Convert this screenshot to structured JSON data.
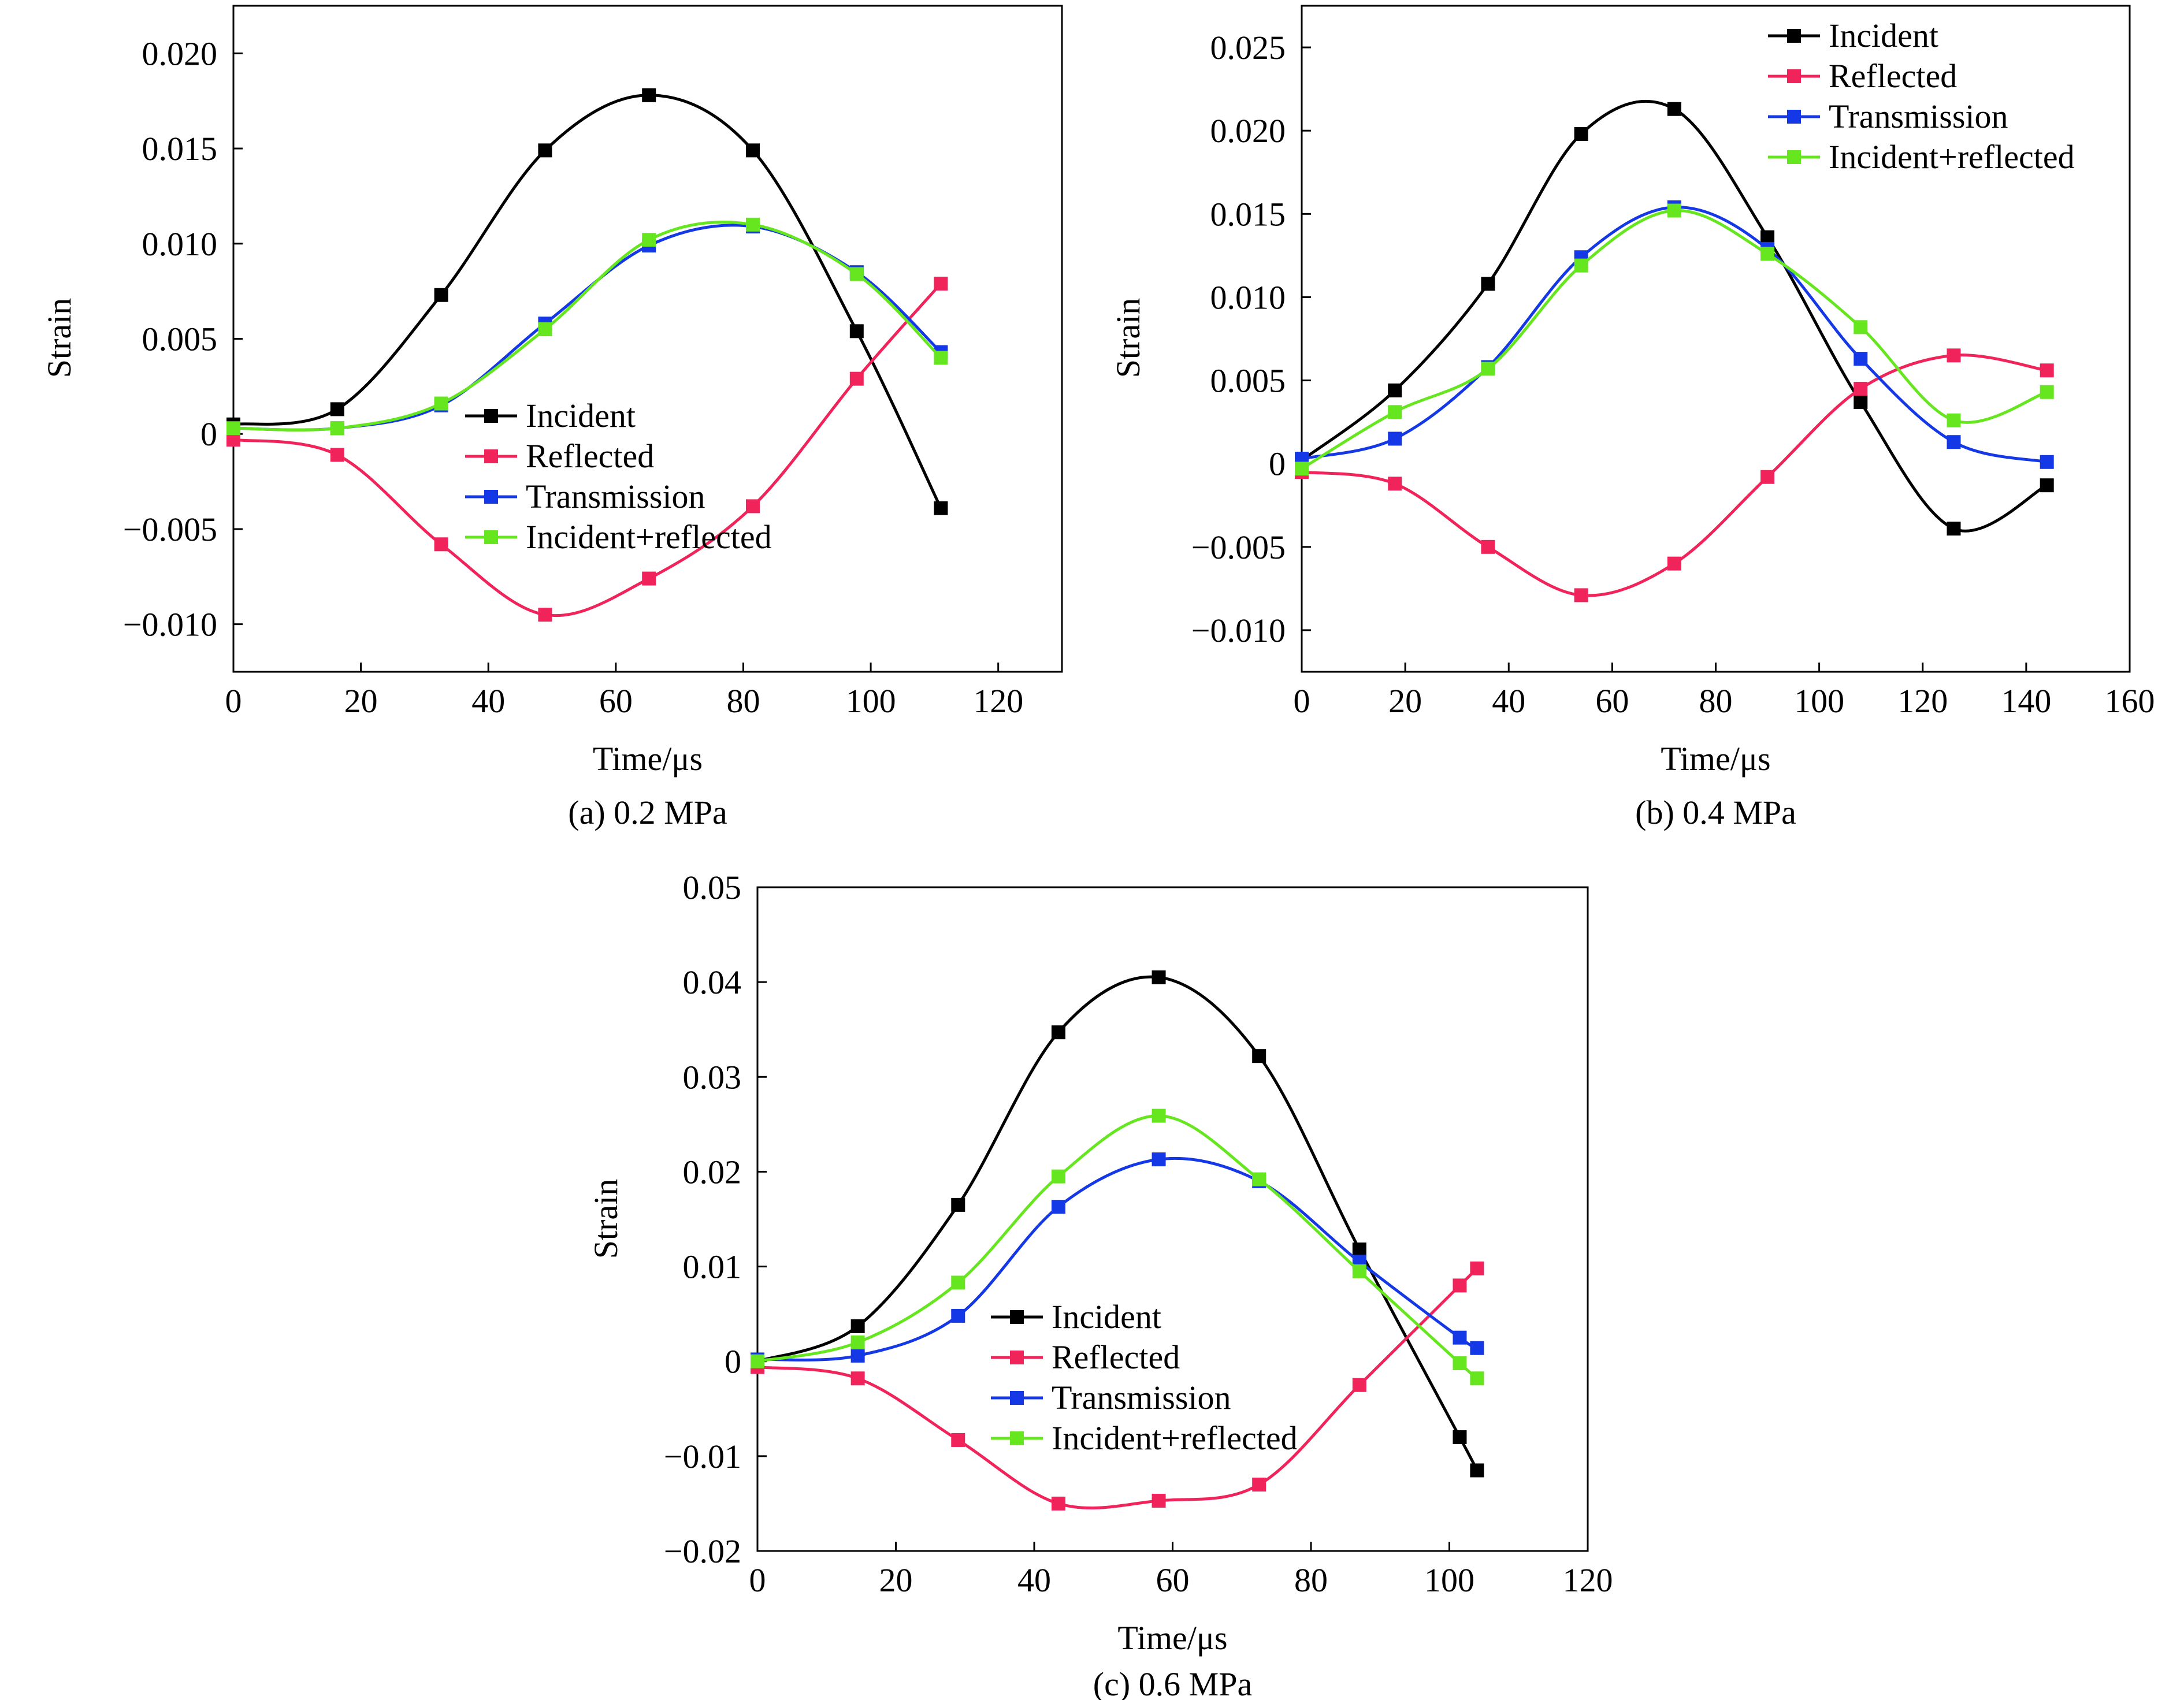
{
  "colors": {
    "Incident": "#000000",
    "Reflected": "#f0245a",
    "Transmission": "#1538e6",
    "Incident+reflected": "#66e61e"
  },
  "chart_data": [
    {
      "id": "a",
      "type": "line",
      "caption": "(a) 0.2 MPa",
      "xlabel": "Time/μs",
      "ylabel": "Strain",
      "xlim": [
        0,
        130
      ],
      "ylim": [
        -0.0125,
        0.0225
      ],
      "xticks": [
        0,
        20,
        40,
        60,
        80,
        100,
        120
      ],
      "xtick_labels": [
        "0",
        "20",
        "40",
        "60",
        "80",
        "100",
        "120"
      ],
      "yticks": [
        -0.01,
        -0.005,
        0,
        0.005,
        0.01,
        0.015,
        0.02
      ],
      "ytick_labels": [
        "−0.010",
        "−0.005",
        "0",
        "0.005",
        "0.010",
        "0.015",
        "0.020"
      ],
      "legend_position": "center",
      "legend": [
        "Incident",
        "Reflected",
        "Transmission",
        "Incident+reflected"
      ],
      "series": [
        {
          "name": "Incident",
          "x": [
            0,
            16.3,
            32.6,
            48.9,
            65.2,
            81.5,
            97.8,
            111.0
          ],
          "y": [
            0.0005,
            0.0013,
            0.0073,
            0.0149,
            0.0178,
            0.0149,
            0.0054,
            -0.0039
          ]
        },
        {
          "name": "Reflected",
          "x": [
            0,
            16.3,
            32.6,
            48.9,
            65.2,
            81.5,
            97.8,
            111.0
          ],
          "y": [
            -0.0003,
            -0.0011,
            -0.0058,
            -0.0095,
            -0.0076,
            -0.0038,
            0.0029,
            0.0079
          ]
        },
        {
          "name": "Transmission",
          "x": [
            0,
            16.3,
            32.6,
            48.9,
            65.2,
            81.5,
            97.8,
            111.0
          ],
          "y": [
            0.0003,
            0.0003,
            0.0015,
            0.0058,
            0.0099,
            0.0109,
            0.0085,
            0.0043
          ]
        },
        {
          "name": "Incident+reflected",
          "x": [
            0,
            16.3,
            32.6,
            48.9,
            65.2,
            81.5,
            97.8,
            111.0
          ],
          "y": [
            0.0003,
            0.0003,
            0.0016,
            0.0055,
            0.0102,
            0.011,
            0.0084,
            0.004
          ]
        }
      ]
    },
    {
      "id": "b",
      "type": "line",
      "caption": "(b) 0.4 MPa",
      "xlabel": "Time/μs",
      "ylabel": "Strain",
      "xlim": [
        0,
        160
      ],
      "ylim": [
        -0.0125,
        0.0275
      ],
      "xticks": [
        0,
        20,
        40,
        60,
        80,
        100,
        120,
        140,
        160
      ],
      "xtick_labels": [
        "0",
        "20",
        "40",
        "60",
        "80",
        "100",
        "120",
        "140",
        "160"
      ],
      "yticks": [
        -0.01,
        -0.005,
        0,
        0.005,
        0.01,
        0.015,
        0.02,
        0.025
      ],
      "ytick_labels": [
        "−0.010",
        "−0.005",
        "0",
        "0.005",
        "0.010",
        "0.015",
        "0.020",
        "0.025"
      ],
      "legend_position": "top-right",
      "legend": [
        "Incident",
        "Reflected",
        "Transmission",
        "Incident+reflected"
      ],
      "series": [
        {
          "name": "Incident",
          "x": [
            0,
            18,
            36,
            54,
            72,
            90,
            108,
            126,
            144
          ],
          "y": [
            0.0002,
            0.0044,
            0.0108,
            0.0198,
            0.0213,
            0.0136,
            0.0037,
            -0.0039,
            -0.0013
          ]
        },
        {
          "name": "Reflected",
          "x": [
            0,
            18,
            36,
            54,
            72,
            90,
            108,
            126,
            144
          ],
          "y": [
            -0.0005,
            -0.0012,
            -0.005,
            -0.0079,
            -0.006,
            -0.0008,
            0.0045,
            0.0065,
            0.0056
          ]
        },
        {
          "name": "Transmission",
          "x": [
            0,
            18,
            36,
            54,
            72,
            90,
            108,
            126,
            144
          ],
          "y": [
            0.0003,
            0.0015,
            0.0058,
            0.0124,
            0.0154,
            0.0129,
            0.0063,
            0.0013,
            0.0001
          ]
        },
        {
          "name": "Incident+reflected",
          "x": [
            0,
            18,
            36,
            54,
            72,
            90,
            108,
            126,
            144
          ],
          "y": [
            -0.0003,
            0.0031,
            0.0057,
            0.0119,
            0.0152,
            0.0126,
            0.0082,
            0.0026,
            0.0043
          ]
        }
      ]
    },
    {
      "id": "c",
      "type": "line",
      "caption": "(c) 0.6 MPa",
      "xlabel": "Time/μs",
      "ylabel": "Strain",
      "xlim": [
        0,
        120
      ],
      "ylim": [
        -0.02,
        0.05
      ],
      "xticks": [
        0,
        20,
        40,
        60,
        80,
        100,
        120
      ],
      "xtick_labels": [
        "0",
        "20",
        "40",
        "60",
        "80",
        "100",
        "120"
      ],
      "yticks": [
        -0.02,
        -0.01,
        0,
        0.01,
        0.02,
        0.03,
        0.04,
        0.05
      ],
      "ytick_labels": [
        "−0.02",
        "−0.01",
        "0",
        "0.01",
        "0.02",
        "0.03",
        "0.04",
        "0.05"
      ],
      "legend_position": "bottom-center",
      "legend": [
        "Incident",
        "Reflected",
        "Transmission",
        "Incident+reflected"
      ],
      "series": [
        {
          "name": "Incident",
          "x": [
            0,
            14.5,
            29,
            43.5,
            58,
            72.5,
            87,
            101.5,
            104
          ],
          "y": [
            0.0,
            0.0037,
            0.0165,
            0.0347,
            0.0405,
            0.0322,
            0.0118,
            -0.008,
            -0.0115
          ]
        },
        {
          "name": "Reflected",
          "x": [
            0,
            14.5,
            29,
            43.5,
            58,
            72.5,
            87,
            101.5,
            104
          ],
          "y": [
            -0.0006,
            -0.0018,
            -0.0083,
            -0.015,
            -0.0147,
            -0.013,
            -0.0025,
            0.008,
            0.0098
          ]
        },
        {
          "name": "Transmission",
          "x": [
            0,
            14.5,
            29,
            43.5,
            58,
            72.5,
            87,
            101.5,
            104
          ],
          "y": [
            0.0002,
            0.0006,
            0.0048,
            0.0163,
            0.0213,
            0.019,
            0.0105,
            0.0025,
            0.0014
          ]
        },
        {
          "name": "Incident+reflected",
          "x": [
            0,
            14.5,
            29,
            43.5,
            58,
            72.5,
            87,
            101.5,
            104
          ],
          "y": [
            0.0,
            0.002,
            0.0083,
            0.0195,
            0.0259,
            0.0192,
            0.0095,
            -0.0002,
            -0.0018
          ]
        }
      ]
    }
  ]
}
